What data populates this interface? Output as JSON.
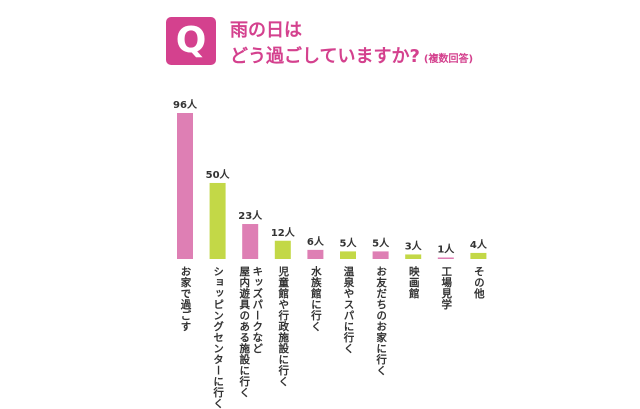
{
  "header": {
    "q_mark": "Q",
    "title_line1": "雨の日は",
    "title_line2": "どう過ごしていますか?",
    "note": "(複数回答)"
  },
  "colors": {
    "accent": "#d4418e",
    "pink": "#de7fb4",
    "green": "#c3d847",
    "text": "#333333"
  },
  "chart_data": {
    "type": "bar",
    "categories": [
      [
        "お家で過ごす"
      ],
      [
        "ショッピングセンターに行く"
      ],
      [
        "キッズパークなど",
        "屋内遊具のある施設に行く"
      ],
      [
        "児童館や行政施設に行く"
      ],
      [
        "水族館に行く"
      ],
      [
        "温泉やスパに行く"
      ],
      [
        "お友だちのお家に行く"
      ],
      [
        "映画館"
      ],
      [
        "工場見学"
      ],
      [
        "その他"
      ]
    ],
    "values": [
      96,
      50,
      23,
      12,
      6,
      5,
      5,
      3,
      1,
      4
    ],
    "value_labels": [
      "96人",
      "50人",
      "23人",
      "12人",
      "6人",
      "5人",
      "5人",
      "3人",
      "1人",
      "4人"
    ],
    "bar_colors": [
      "pink",
      "green",
      "pink",
      "green",
      "pink",
      "green",
      "pink",
      "green",
      "pink",
      "green"
    ],
    "ylim": [
      0,
      96
    ],
    "grid": false,
    "xlabel": "",
    "ylabel": ""
  }
}
